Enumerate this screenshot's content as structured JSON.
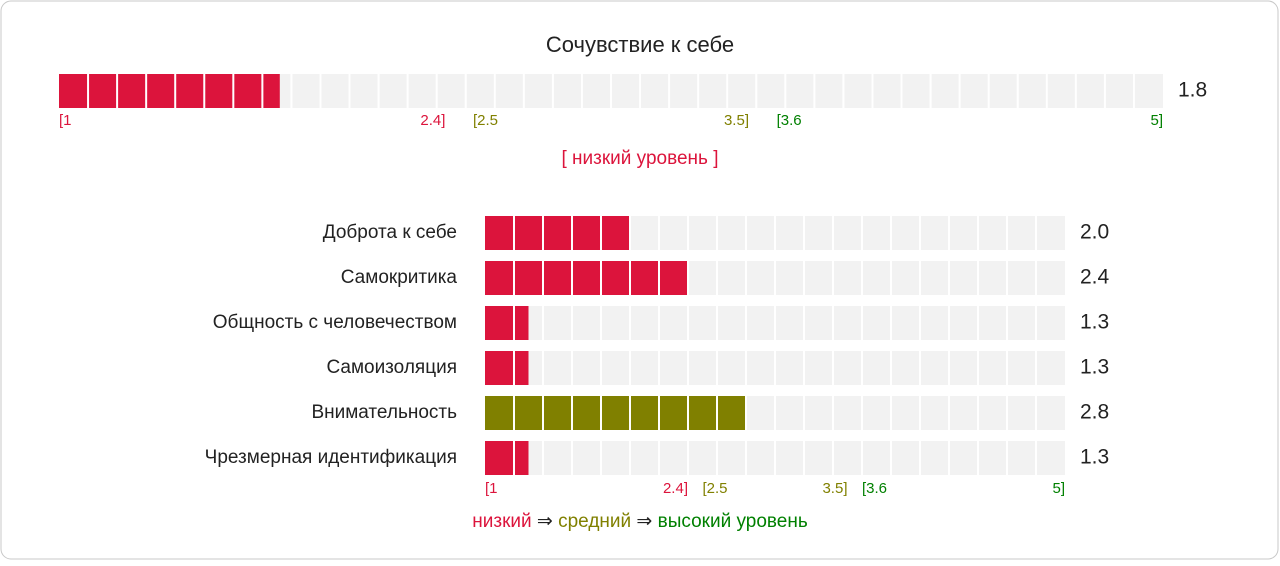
{
  "chart_data": [
    {
      "type": "bar",
      "orientation": "horizontal",
      "title": "Сочувствие к себе",
      "values": [
        1.8
      ],
      "value_labels": [
        "1.8"
      ],
      "color": "#dc143c",
      "level_label": "[ низкий уровень ]",
      "xlim": [
        1,
        5
      ],
      "xticks": [
        {
          "value": 1,
          "label": "[1"
        },
        {
          "value": 2.4,
          "label": "2.4]"
        },
        {
          "value": 2.5,
          "label": "[2.5"
        },
        {
          "value": 3.5,
          "label": "3.5]"
        },
        {
          "value": 3.6,
          "label": "[3.6"
        },
        {
          "value": 5,
          "label": "5]"
        }
      ],
      "tick_colors": [
        "#dc143c",
        "#dc143c",
        "#808000",
        "#808000",
        "#008000",
        "#008000"
      ]
    },
    {
      "type": "bar",
      "orientation": "horizontal",
      "categories": [
        "Доброта к себе",
        "Самокритика",
        "Общность с человечеством",
        "Самоизоляция",
        "Внимательность",
        "Чрезмерная идентификация"
      ],
      "values": [
        2.0,
        2.4,
        1.3,
        1.3,
        2.8,
        1.3
      ],
      "value_labels": [
        "2.0",
        "2.4",
        "1.3",
        "1.3",
        "2.8",
        "1.3"
      ],
      "colors": [
        "#dc143c",
        "#dc143c",
        "#dc143c",
        "#dc143c",
        "#808000",
        "#dc143c"
      ],
      "xlim": [
        1,
        5
      ],
      "xticks": [
        {
          "value": 1,
          "label": "[1"
        },
        {
          "value": 2.4,
          "label": "2.4]"
        },
        {
          "value": 2.5,
          "label": "[2.5"
        },
        {
          "value": 3.5,
          "label": "3.5]"
        },
        {
          "value": 3.6,
          "label": "[3.6"
        },
        {
          "value": 5,
          "label": "5]"
        }
      ],
      "tick_colors": [
        "#dc143c",
        "#dc143c",
        "#808000",
        "#808000",
        "#008000",
        "#008000"
      ],
      "legend": {
        "separator": "⇒",
        "items": [
          {
            "name": "низкий",
            "color": "#dc143c"
          },
          {
            "name": "средний",
            "color": "#808000"
          },
          {
            "name": "высокий уровень",
            "color": "#008000"
          }
        ]
      }
    }
  ]
}
